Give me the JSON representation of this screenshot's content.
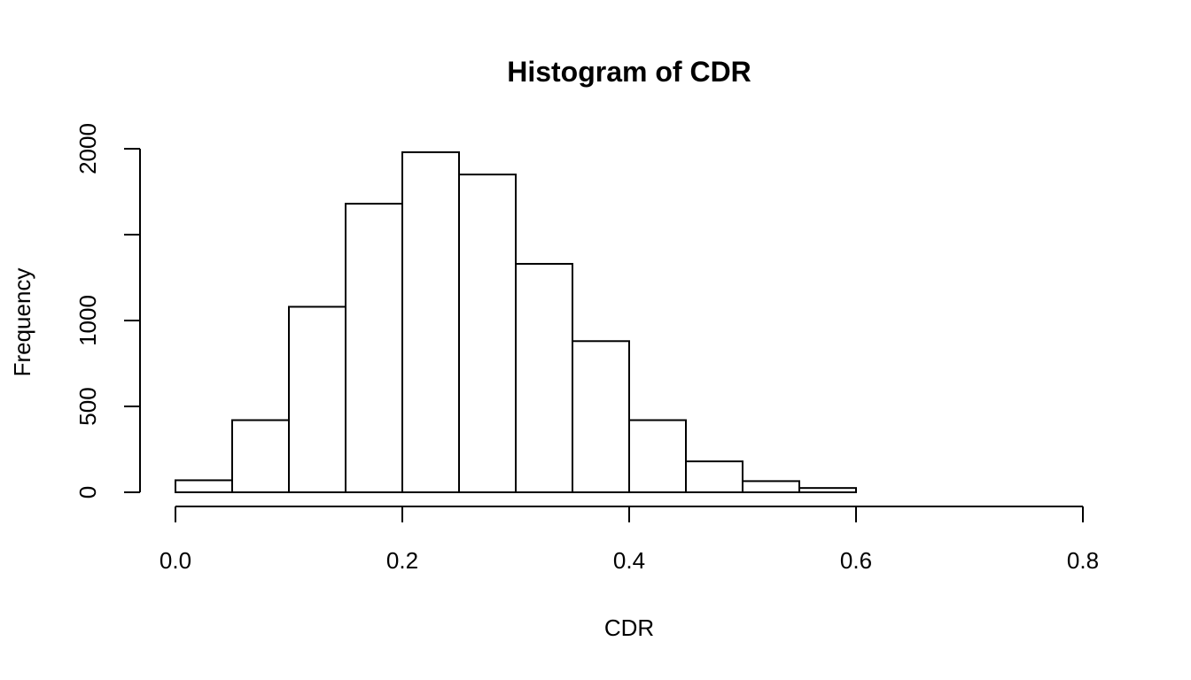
{
  "chart_data": {
    "type": "bar",
    "title": "Histogram of CDR",
    "xlabel": "CDR",
    "ylabel": "Frequency",
    "bin_edges": [
      0.0,
      0.05,
      0.1,
      0.15,
      0.2,
      0.25,
      0.3,
      0.35,
      0.4,
      0.45,
      0.5,
      0.55,
      0.6,
      0.65,
      0.7,
      0.75,
      0.8
    ],
    "values": [
      70,
      420,
      1080,
      1680,
      1980,
      1850,
      1330,
      880,
      420,
      180,
      65,
      25,
      0,
      0,
      0,
      0
    ],
    "xlim": [
      0.0,
      0.8
    ],
    "ylim": [
      0,
      2000
    ],
    "x_ticks": [
      0.0,
      0.2,
      0.4,
      0.6,
      0.8
    ],
    "x_tick_labels": [
      "0.0",
      "0.2",
      "0.4",
      "0.6",
      "0.8"
    ],
    "y_ticks": [
      0,
      500,
      1000,
      1500,
      2000
    ],
    "y_tick_labels": [
      "0",
      "500",
      "1000",
      "",
      "2000"
    ],
    "grid": false,
    "legend": "none",
    "colors": {
      "bar_fill": "#ffffff",
      "bar_stroke": "#000000",
      "background": "#ffffff"
    }
  }
}
